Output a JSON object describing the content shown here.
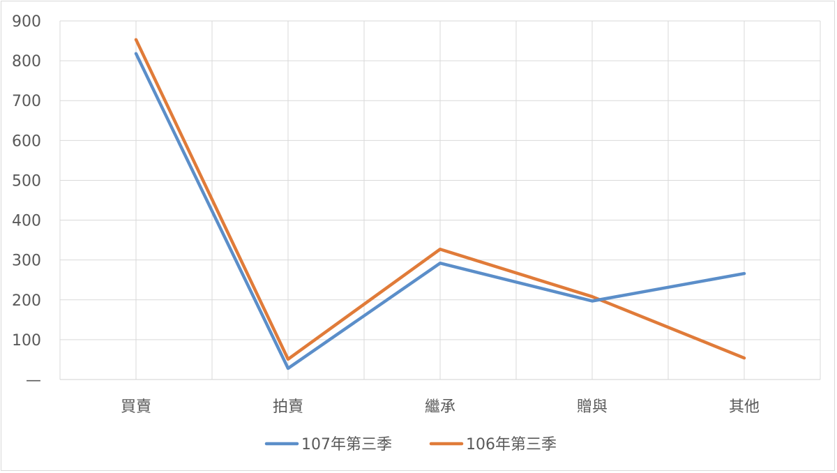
{
  "chart_data": {
    "type": "line",
    "title": "",
    "xlabel": "",
    "ylabel": "",
    "categories": [
      "買賣",
      "拍賣",
      "繼承",
      "贈與",
      "其他"
    ],
    "ylim": [
      0,
      900
    ],
    "yticks": [
      0,
      100,
      200,
      300,
      400,
      500,
      600,
      700,
      800,
      900
    ],
    "ytick_labels": [
      "—",
      "100",
      "200",
      "300",
      "400",
      "500",
      "600",
      "700",
      "800",
      "900"
    ],
    "grid": true,
    "legend_position": "bottom",
    "series": [
      {
        "name": "107年第三季",
        "color": "#5b8ec9",
        "values": [
          818,
          28,
          292,
          197,
          266
        ]
      },
      {
        "name": "106年第三季",
        "color": "#e07b39",
        "values": [
          853,
          51,
          327,
          208,
          54
        ]
      }
    ]
  }
}
